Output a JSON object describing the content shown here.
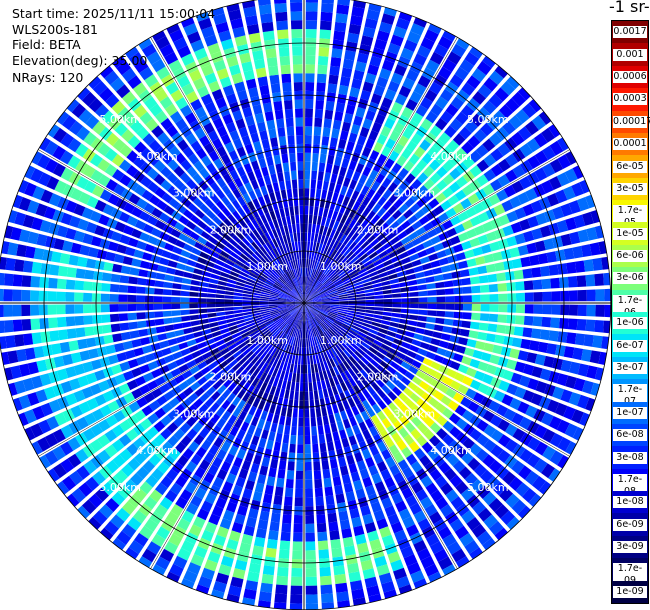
{
  "info": {
    "start_time": "Start time: 2025/11/11 15:00:04",
    "instrument": "WLS200s-181",
    "field": "Field: BETA",
    "elevation": "Elevation(deg): 35.00",
    "nrays": "NRays: 120"
  },
  "colorbar": {
    "title": "-1 sr-",
    "labels": [
      "0.0017",
      "0.001",
      "0.0006",
      "0.0003",
      "0.00017",
      "0.0001",
      "6e-05",
      "3e-05",
      "1.7e-05",
      "1e-05",
      "6e-06",
      "3e-06",
      "1.7e-06",
      "1e-06",
      "6e-07",
      "3e-07",
      "1.7e-07",
      "1e-07",
      "6e-08",
      "3e-08",
      "1.7e-08",
      "1e-08",
      "6e-09",
      "3e-09",
      "1.7e-09",
      "1e-09"
    ],
    "colors": [
      "#800000",
      "#b00000",
      "#e00000",
      "#ff1800",
      "#ff4a00",
      "#ff7a00",
      "#ffa800",
      "#ffd400",
      "#f8f800",
      "#d4ff22",
      "#aaff4c",
      "#7cff7a",
      "#4effa8",
      "#22ffd4",
      "#00e4f8",
      "#00bcff",
      "#0094ff",
      "#006cff",
      "#0044ff",
      "#0020ff",
      "#0000fa",
      "#0000d0",
      "#0000a8",
      "#000084",
      "#000062",
      "#000044"
    ]
  },
  "chart_data": {
    "type": "heatmap",
    "projection": "polar (PPI)",
    "field": "BETA",
    "nrays": 120,
    "elevation_deg": 35.0,
    "range_rings_km": [
      1.0,
      2.0,
      3.0,
      4.0,
      5.0
    ],
    "ring_labels": [
      "1.00km",
      "2.00km",
      "3.00km",
      "4.00km",
      "5.00km"
    ],
    "max_range_km": 5.9,
    "color_scale": "log",
    "value_range": [
      1e-09,
      0.0017
    ],
    "features": [
      {
        "description": "enhanced backscatter band",
        "range_km": [
          4.6,
          5.0
        ],
        "azimuth_deg": [
          300,
          360
        ],
        "level": 2e-06
      },
      {
        "description": "enhanced backscatter band",
        "range_km": [
          3.5,
          4.1
        ],
        "azimuth_deg": [
          30,
          110
        ],
        "level": 1e-06
      },
      {
        "description": "enhanced backscatter band",
        "range_km": [
          2.8,
          3.3
        ],
        "azimuth_deg": [
          120,
          145
        ],
        "level": 8e-06
      },
      {
        "description": "enhanced backscatter band",
        "range_km": [
          4.8,
          5.3
        ],
        "azimuth_deg": [
          165,
          215
        ],
        "level": 1.5e-06
      },
      {
        "description": "enhanced backscatter band",
        "range_km": [
          4.0,
          5.0
        ],
        "azimuth_deg": [
          225,
          275
        ],
        "level": 4e-07
      }
    ]
  }
}
